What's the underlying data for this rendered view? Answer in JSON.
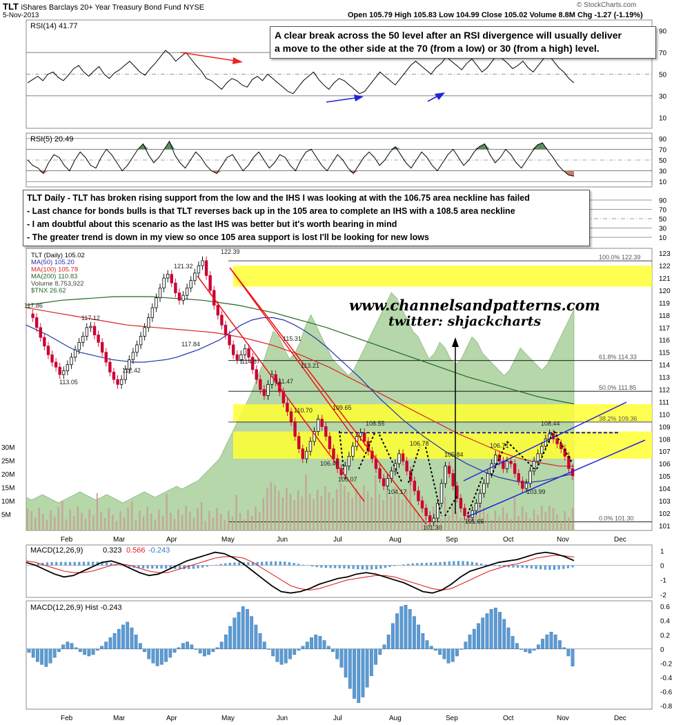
{
  "header": {
    "symbol": "TLT",
    "name": "iShares Barclays 20+ Year Treasury Bond Fund",
    "exchange": "NYSE",
    "date": "5-Nov-2013",
    "watermark": "© StockCharts.com",
    "quote_line": "Open 105.79  High 105.83  Low 104.99  Close 105.02  Volume 8.8M  Chg -1.27 (-1.19%)"
  },
  "notes": {
    "rsi_note": [
      "A clear break across the 50 level after an RSI divergence will usually deliver",
      "a move to the other side at the 70 (from a low) or 30 (from a high) level."
    ],
    "main_note": [
      "TLT Daily - TLT has broken rising support from the low and the IHS I was looking at with the 106.75 area neckline has failed",
      "- Last chance for bonds bulls is that TLT reverses back up in the 105 area to complete an IHS with a 108.5 area neckline",
      "- I am doubtful about this scenario as the last IHS was better but it's worth bearing in mind",
      "- The greater trend is down in my view so once 105 area support is lost I'll be looking for new lows"
    ],
    "website": "www.channelsandpatterns.com",
    "twitter": "twitter: shjackcharts"
  },
  "colors": {
    "candle_up": "#000000",
    "candle_down": "#cc0033",
    "ma50": "#2233aa",
    "ma100": "#dd2222",
    "ma200": "#226622",
    "tnx_fill": "#9cc98c",
    "volume": "#c89a94",
    "yellow_zone": "#ffff33",
    "channel_red": "#ee1111",
    "channel_blue": "#2222dd",
    "macd_hist": "#5b9bd5"
  },
  "chart_data": [
    {
      "type": "line",
      "panel": "rsi14",
      "legend": "RSI(14) 41.77",
      "y_ticks": [
        90,
        70,
        50,
        30,
        10
      ],
      "ylim": [
        0,
        100
      ],
      "series": [
        {
          "name": "RSI(14)",
          "values": [
            42,
            45,
            48,
            44,
            50,
            52,
            47,
            44,
            49,
            55,
            58,
            52,
            48,
            53,
            57,
            50,
            46,
            51,
            54,
            58,
            62,
            57,
            52,
            49,
            55,
            60,
            66,
            72,
            68,
            62,
            66,
            70,
            64,
            58,
            53,
            46,
            44,
            40,
            36,
            42,
            46,
            44,
            40,
            38,
            45,
            48,
            44,
            50,
            46,
            42,
            38,
            34,
            32,
            38,
            44,
            48,
            52,
            45,
            40,
            36,
            42,
            46,
            44,
            40,
            36,
            32,
            34,
            40,
            46,
            52,
            48,
            44,
            40,
            46,
            52,
            58,
            62,
            58,
            54,
            50,
            56,
            60,
            66,
            62,
            58,
            54,
            60,
            64,
            58,
            52,
            56,
            62,
            68,
            64,
            60,
            55,
            58,
            62,
            56,
            52,
            58,
            64,
            68,
            62,
            56,
            52,
            46,
            42
          ]
        }
      ],
      "annotations": [
        {
          "type": "arrow",
          "color": "red",
          "text": ""
        },
        {
          "type": "arrow",
          "color": "blue",
          "text": ""
        }
      ]
    },
    {
      "type": "line",
      "panel": "rsi5",
      "legend": "RSI(5) 20.49",
      "y_ticks": [
        90,
        70,
        50,
        30,
        10
      ],
      "ylim": [
        0,
        100
      ],
      "series": [
        {
          "name": "RSI(5)",
          "values": [
            50,
            40,
            35,
            25,
            45,
            60,
            55,
            40,
            30,
            50,
            65,
            55,
            40,
            35,
            55,
            70,
            60,
            45,
            30,
            40,
            55,
            70,
            80,
            60,
            45,
            55,
            70,
            85,
            60,
            45,
            35,
            50,
            65,
            55,
            40,
            30,
            25,
            40,
            55,
            60,
            45,
            30,
            40,
            55,
            65,
            50,
            35,
            45,
            60,
            55,
            40,
            30,
            50,
            65,
            70,
            55,
            40,
            30,
            45,
            60,
            50,
            35,
            25,
            40,
            55,
            65,
            55,
            40,
            50,
            65,
            75,
            60,
            45,
            35,
            50,
            65,
            55,
            40,
            30,
            45,
            60,
            70,
            55,
            40,
            50,
            65,
            75,
            80,
            60,
            45,
            55,
            70,
            60,
            45,
            35,
            50,
            65,
            78,
            82,
            68,
            55,
            40,
            30,
            22,
            20
          ]
        }
      ]
    },
    {
      "type": "candlestick",
      "panel": "price",
      "legend": [
        "TLT (Daily) 105.02",
        "MA(50) 105.20",
        "MA(100) 105.78",
        "MA(200) 110.83",
        "Volume 8,753,922",
        "$TNX 26.62"
      ],
      "x_ticks": [
        "Feb",
        "Mar",
        "Apr",
        "May",
        "Jun",
        "Jul",
        "Aug",
        "Sep",
        "Oct",
        "Nov",
        "Dec"
      ],
      "y_ticks": [
        123,
        122,
        121,
        120,
        119,
        118,
        117,
        116,
        115,
        114,
        113,
        112,
        111,
        110,
        109,
        108,
        107,
        106,
        105,
        104,
        103,
        102,
        101
      ],
      "ylim": [
        100.6,
        123.4
      ],
      "volume_ticks": [
        "30M",
        "25M",
        "20M",
        "15M",
        "10M",
        "5M"
      ],
      "price_path": [
        118.1,
        117.8,
        117.0,
        116.2,
        115.5,
        114.8,
        114.2,
        113.8,
        113.2,
        113.5,
        114.0,
        114.6,
        115.2,
        115.8,
        116.3,
        117.0,
        117.1,
        116.4,
        115.8,
        115.0,
        114.2,
        113.4,
        112.8,
        112.4,
        112.8,
        113.6,
        114.4,
        115.0,
        115.6,
        116.3,
        117.0,
        117.8,
        118.6,
        119.4,
        120.2,
        121.0,
        121.3,
        120.6,
        119.8,
        119.2,
        119.6,
        120.2,
        120.8,
        121.4,
        122.0,
        122.4,
        121.2,
        120.0,
        118.8,
        118.0,
        117.2,
        116.4,
        115.6,
        114.8,
        114.4,
        114.8,
        115.3,
        114.6,
        113.6,
        112.8,
        112.0,
        111.5,
        112.4,
        113.2,
        112.6,
        111.8,
        110.9,
        110.2,
        109.4,
        108.2,
        107.2,
        106.4,
        107.0,
        107.8,
        108.6,
        109.6,
        109.0,
        108.2,
        107.2,
        106.4,
        105.6,
        105.1,
        105.8,
        106.6,
        107.4,
        108.2,
        108.5,
        107.8,
        107.0,
        106.4,
        105.6,
        104.8,
        104.2,
        104.8,
        105.4,
        106.0,
        106.8,
        106.2,
        105.4,
        104.6,
        103.8,
        103.0,
        102.4,
        101.8,
        101.3,
        101.6,
        102.8,
        104.4,
        105.8,
        105.2,
        104.2,
        103.2,
        102.4,
        101.8,
        101.65,
        102.2,
        102.8,
        103.6,
        104.4,
        105.2,
        106.0,
        106.7,
        106.2,
        105.6,
        106.2,
        106.0,
        105.2,
        104.6,
        104.0,
        104.4,
        105.4,
        106.2,
        106.8,
        107.4,
        108.0,
        108.4,
        108.0,
        107.6,
        107.2,
        106.6,
        105.6,
        105.02
      ],
      "ma50": [
        117.2,
        116.8,
        116.4,
        115.9,
        115.4,
        115.0,
        114.8,
        114.6,
        114.4,
        114.3,
        114.2,
        114.2,
        114.3,
        114.4,
        114.6,
        114.9,
        115.2,
        115.6,
        116.0,
        116.6,
        117.2,
        117.6,
        117.8,
        117.8,
        117.6,
        117.2,
        116.7,
        116.1,
        115.4,
        114.6,
        113.8,
        113.0,
        112.1,
        111.2,
        110.4,
        109.6,
        108.9,
        108.2,
        107.6,
        107.0,
        106.5,
        106.0,
        105.6,
        105.2,
        104.9,
        104.7,
        104.5,
        104.5,
        104.6,
        104.8,
        105.0,
        105.2
      ],
      "ma100": [
        118.6,
        118.4,
        118.2,
        118.0,
        117.8,
        117.6,
        117.4,
        117.2,
        117.1,
        117.0,
        116.9,
        116.8,
        116.7,
        116.6,
        116.4,
        116.2,
        115.9,
        115.6,
        115.2,
        114.8,
        114.3,
        113.8,
        113.2,
        112.6,
        112.0,
        111.4,
        110.8,
        110.2,
        109.6,
        109.0,
        108.4,
        107.9,
        107.4,
        106.9,
        106.5,
        106.2,
        106.0,
        105.8,
        105.8
      ],
      "ma200": [
        118.8,
        119.0,
        119.2,
        119.3,
        119.4,
        119.5,
        119.5,
        119.5,
        119.4,
        119.3,
        119.2,
        119.0,
        118.8,
        118.5,
        118.2,
        117.8,
        117.4,
        117.0,
        116.5,
        116.0,
        115.5,
        115.0,
        114.5,
        114.0,
        113.5,
        113.0,
        112.6,
        112.2,
        111.8,
        111.4,
        111.1,
        110.83
      ],
      "tnx_path": [
        12,
        11,
        12,
        13,
        12,
        11,
        10,
        11,
        12,
        13,
        14,
        13,
        12,
        11,
        12,
        13,
        12,
        11,
        10,
        11,
        12,
        13,
        14,
        13,
        12,
        13,
        14,
        15,
        16,
        15,
        16,
        17,
        18,
        20,
        22,
        24,
        26,
        30,
        34,
        38,
        42,
        46,
        50,
        55,
        60,
        66,
        72,
        70,
        66,
        62,
        64,
        68,
        74,
        78,
        74,
        70,
        66,
        62,
        60,
        58,
        56,
        58,
        62,
        66,
        70,
        74,
        78,
        82,
        86,
        84,
        80,
        76,
        72,
        70,
        66,
        62,
        64,
        68,
        66,
        62,
        60,
        62,
        66,
        70,
        68,
        64,
        62,
        60,
        58,
        56,
        58,
        62,
        66,
        64,
        62,
        60,
        58,
        60,
        64,
        68,
        72,
        76,
        80
      ],
      "fib_levels": [
        {
          "label": "100.0% 122.39",
          "value": 122.39
        },
        {
          "label": "61.8% 114.33",
          "value": 114.33
        },
        {
          "label": "50.0% 111.85",
          "value": 111.85
        },
        {
          "label": "38.2% 109.36",
          "value": 109.36
        },
        {
          "label": "0.0% 101.30",
          "value": 101.3
        }
      ],
      "yellow_zones": [
        [
          120.3,
          122.0
        ],
        [
          109.4,
          110.8
        ],
        [
          106.4,
          108.6
        ]
      ],
      "neckline": 108.5,
      "price_labels": [
        {
          "text": "117.86",
          "value": 117.86
        },
        {
          "text": "113.05",
          "value": 113.05
        },
        {
          "text": "117.12",
          "value": 117.12
        },
        {
          "text": "112.42",
          "value": 112.42
        },
        {
          "text": "121.32",
          "value": 121.32
        },
        {
          "text": "117.84",
          "value": 117.84
        },
        {
          "text": "122.39",
          "value": 122.39
        },
        {
          "text": "114.67",
          "value": 114.67
        },
        {
          "text": "115.31",
          "value": 115.31
        },
        {
          "text": "111.47",
          "value": 111.47
        },
        {
          "text": "113.21",
          "value": 113.21
        },
        {
          "text": "110.70",
          "value": 110.7
        },
        {
          "text": "109.65",
          "value": 109.65
        },
        {
          "text": "108.55",
          "value": 108.55
        },
        {
          "text": "106.40",
          "value": 106.4
        },
        {
          "text": "105.07",
          "value": 105.07
        },
        {
          "text": "106.78",
          "value": 106.78
        },
        {
          "text": "104.17",
          "value": 104.17
        },
        {
          "text": "105.84",
          "value": 105.84
        },
        {
          "text": "101.30",
          "value": 101.3
        },
        {
          "text": "101.65",
          "value": 101.65
        },
        {
          "text": "106.71",
          "value": 106.71
        },
        {
          "text": "108.44",
          "value": 108.44
        },
        {
          "text": "103.99",
          "value": 103.99
        }
      ]
    },
    {
      "type": "line",
      "panel": "macd",
      "legend": [
        "MACD(12,26,9)",
        "0.323",
        "0.566",
        "-0.243"
      ],
      "y_ticks": [
        1,
        0,
        -1,
        -2
      ],
      "ylim": [
        -2.2,
        1.4
      ],
      "macd": [
        0.2,
        0.0,
        -0.3,
        -0.6,
        -0.8,
        -0.7,
        -0.4,
        -0.1,
        0.2,
        0.3,
        0.1,
        -0.2,
        -0.5,
        -0.7,
        -0.6,
        -0.3,
        0.0,
        0.3,
        0.5,
        0.7,
        0.9,
        0.8,
        0.5,
        0.1,
        -0.4,
        -0.9,
        -1.4,
        -1.8,
        -1.9,
        -1.8,
        -1.6,
        -1.3,
        -1.1,
        -0.9,
        -0.8,
        -0.6,
        -0.5,
        -0.6,
        -0.8,
        -1.0,
        -1.2,
        -1.5,
        -1.8,
        -1.9,
        -1.7,
        -1.3,
        -0.8,
        -0.4,
        -0.2,
        0.0,
        0.2,
        0.3,
        0.4,
        0.6,
        0.8,
        0.9,
        0.8,
        0.6,
        0.323
      ],
      "signal": [
        0.3,
        0.2,
        0.0,
        -0.2,
        -0.4,
        -0.5,
        -0.5,
        -0.4,
        -0.2,
        0.0,
        0.1,
        0.0,
        -0.2,
        -0.4,
        -0.5,
        -0.5,
        -0.3,
        -0.1,
        0.1,
        0.3,
        0.5,
        0.6,
        0.6,
        0.5,
        0.2,
        -0.2,
        -0.6,
        -1.0,
        -1.4,
        -1.6,
        -1.7,
        -1.6,
        -1.4,
        -1.2,
        -1.0,
        -0.9,
        -0.8,
        -0.7,
        -0.7,
        -0.8,
        -1.0,
        -1.2,
        -1.4,
        -1.6,
        -1.7,
        -1.6,
        -1.3,
        -1.0,
        -0.7,
        -0.4,
        -0.2,
        0.0,
        0.1,
        0.3,
        0.5,
        0.6,
        0.7,
        0.65,
        0.566
      ]
    },
    {
      "type": "bar",
      "panel": "macd_hist",
      "legend": "MACD(12,26,9) Hist -0.243",
      "y_ticks": [
        0.6,
        0.4,
        0.2,
        0,
        -0.2,
        -0.4,
        -0.6,
        -0.8
      ],
      "ylim": [
        -0.85,
        0.68
      ],
      "values": [
        -0.05,
        -0.12,
        -0.18,
        -0.22,
        -0.25,
        -0.2,
        -0.12,
        -0.04,
        0.06,
        0.1,
        0.08,
        0.02,
        -0.04,
        -0.08,
        -0.1,
        -0.08,
        -0.02,
        0.04,
        0.1,
        0.16,
        0.22,
        0.28,
        0.34,
        0.38,
        0.3,
        0.2,
        0.08,
        -0.04,
        -0.14,
        -0.2,
        -0.24,
        -0.22,
        -0.18,
        -0.12,
        -0.05,
        0.02,
        0.08,
        0.1,
        0.06,
        0.0,
        -0.06,
        -0.1,
        -0.08,
        -0.04,
        0.02,
        0.1,
        0.2,
        0.32,
        0.44,
        0.52,
        0.6,
        0.56,
        0.46,
        0.34,
        0.22,
        0.1,
        0.0,
        -0.1,
        -0.18,
        -0.22,
        -0.2,
        -0.14,
        -0.08,
        -0.02,
        0.04,
        0.1,
        0.16,
        0.2,
        0.18,
        0.12,
        0.04,
        -0.04,
        -0.14,
        -0.26,
        -0.4,
        -0.56,
        -0.7,
        -0.76,
        -0.68,
        -0.54,
        -0.38,
        -0.22,
        -0.08,
        0.06,
        0.2,
        0.36,
        0.5,
        0.6,
        0.62,
        0.56,
        0.46,
        0.34,
        0.22,
        0.12,
        0.04,
        -0.02,
        -0.08,
        -0.14,
        -0.2,
        -0.18,
        -0.1,
        0.0,
        0.1,
        0.2,
        0.28,
        0.36,
        0.44,
        0.5,
        0.56,
        0.58,
        0.52,
        0.42,
        0.3,
        0.18,
        0.08,
        0.0,
        -0.04,
        -0.06,
        -0.02,
        0.06,
        0.14,
        0.2,
        0.24,
        0.2,
        0.12,
        0.02,
        -0.1,
        -0.243
      ]
    }
  ]
}
